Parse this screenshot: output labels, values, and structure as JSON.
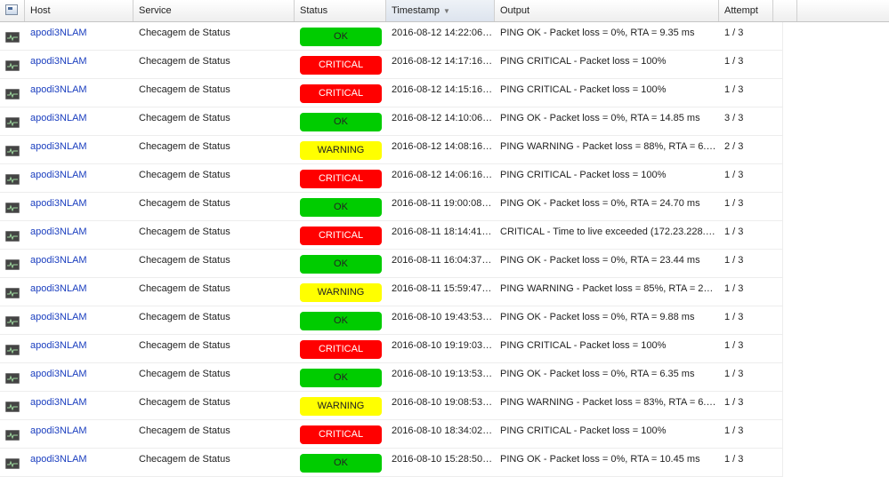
{
  "header": {
    "columns": [
      "Host",
      "Service",
      "Status",
      "Timestamp",
      "Output",
      "Attempt"
    ],
    "sorted_column": "Timestamp",
    "sort_direction": "descending"
  },
  "status_colors": {
    "OK": "#00cc00",
    "CRITICAL": "#ff0000",
    "WARNING": "#ffff00"
  },
  "rows": [
    {
      "host": "apodi3NLAM",
      "service": "Checagem de Status",
      "status": "OK",
      "timestamp": "2016-08-12 14:22:06…",
      "output": "PING OK - Packet loss = 0%, RTA = 9.35 ms",
      "attempt": "1 / 3"
    },
    {
      "host": "apodi3NLAM",
      "service": "Checagem de Status",
      "status": "CRITICAL",
      "timestamp": "2016-08-12 14:17:16…",
      "output": "PING CRITICAL - Packet loss = 100%",
      "attempt": "1 / 3"
    },
    {
      "host": "apodi3NLAM",
      "service": "Checagem de Status",
      "status": "CRITICAL",
      "timestamp": "2016-08-12 14:15:16…",
      "output": "PING CRITICAL - Packet loss = 100%",
      "attempt": "1 / 3"
    },
    {
      "host": "apodi3NLAM",
      "service": "Checagem de Status",
      "status": "OK",
      "timestamp": "2016-08-12 14:10:06…",
      "output": "PING OK - Packet loss = 0%, RTA = 14.85 ms",
      "attempt": "3 / 3"
    },
    {
      "host": "apodi3NLAM",
      "service": "Checagem de Status",
      "status": "WARNING",
      "timestamp": "2016-08-12 14:08:16…",
      "output": "PING WARNING - Packet loss = 88%, RTA = 6.…",
      "attempt": "2 / 3"
    },
    {
      "host": "apodi3NLAM",
      "service": "Checagem de Status",
      "status": "CRITICAL",
      "timestamp": "2016-08-12 14:06:16…",
      "output": "PING CRITICAL - Packet loss = 100%",
      "attempt": "1 / 3"
    },
    {
      "host": "apodi3NLAM",
      "service": "Checagem de Status",
      "status": "OK",
      "timestamp": "2016-08-11 19:00:08…",
      "output": "PING OK - Packet loss = 0%, RTA = 24.70 ms",
      "attempt": "1 / 3"
    },
    {
      "host": "apodi3NLAM",
      "service": "Checagem de Status",
      "status": "CRITICAL",
      "timestamp": "2016-08-11 18:14:41…",
      "output": "CRITICAL - Time to live exceeded (172.23.228.…",
      "attempt": "1 / 3"
    },
    {
      "host": "apodi3NLAM",
      "service": "Checagem de Status",
      "status": "OK",
      "timestamp": "2016-08-11 16:04:37…",
      "output": "PING OK - Packet loss = 0%, RTA = 23.44 ms",
      "attempt": "1 / 3"
    },
    {
      "host": "apodi3NLAM",
      "service": "Checagem de Status",
      "status": "WARNING",
      "timestamp": "2016-08-11 15:59:47…",
      "output": "PING WARNING - Packet loss = 85%, RTA = 2…",
      "attempt": "1 / 3"
    },
    {
      "host": "apodi3NLAM",
      "service": "Checagem de Status",
      "status": "OK",
      "timestamp": "2016-08-10 19:43:53…",
      "output": "PING OK - Packet loss = 0%, RTA = 9.88 ms",
      "attempt": "1 / 3"
    },
    {
      "host": "apodi3NLAM",
      "service": "Checagem de Status",
      "status": "CRITICAL",
      "timestamp": "2016-08-10 19:19:03…",
      "output": "PING CRITICAL - Packet loss = 100%",
      "attempt": "1 / 3"
    },
    {
      "host": "apodi3NLAM",
      "service": "Checagem de Status",
      "status": "OK",
      "timestamp": "2016-08-10 19:13:53…",
      "output": "PING OK - Packet loss = 0%, RTA = 6.35 ms",
      "attempt": "1 / 3"
    },
    {
      "host": "apodi3NLAM",
      "service": "Checagem de Status",
      "status": "WARNING",
      "timestamp": "2016-08-10 19:08:53…",
      "output": "PING WARNING - Packet loss = 83%, RTA = 6.…",
      "attempt": "1 / 3"
    },
    {
      "host": "apodi3NLAM",
      "service": "Checagem de Status",
      "status": "CRITICAL",
      "timestamp": "2016-08-10 18:34:02…",
      "output": "PING CRITICAL - Packet loss = 100%",
      "attempt": "1 / 3"
    },
    {
      "host": "apodi3NLAM",
      "service": "Checagem de Status",
      "status": "OK",
      "timestamp": "2016-08-10 15:28:50…",
      "output": "PING OK - Packet loss = 0%, RTA = 10.45 ms",
      "attempt": "1 / 3"
    }
  ]
}
